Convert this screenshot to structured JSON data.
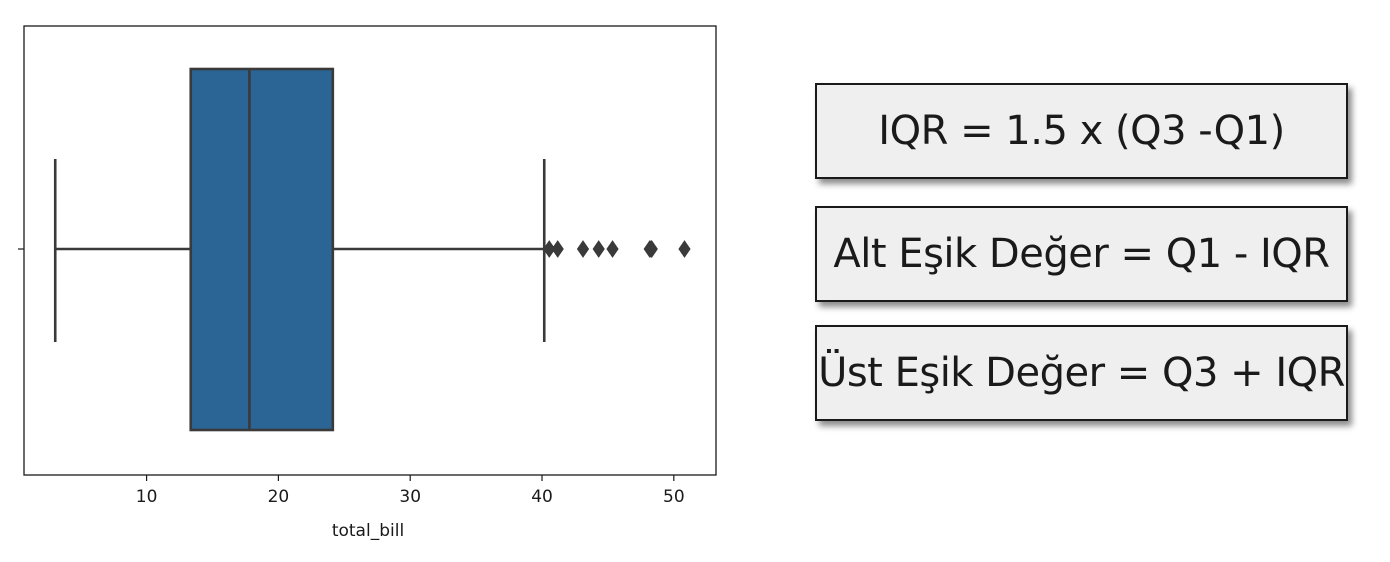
{
  "chart_data": {
    "type": "box",
    "xlabel": "total_bill",
    "xlim": [
      0.7,
      53.2
    ],
    "xticks": [
      10,
      20,
      30,
      40,
      50
    ],
    "box": {
      "whisker_low": 3.07,
      "q1": 13.35,
      "median": 17.8,
      "q3": 24.13,
      "whisker_high": 40.17
    },
    "outliers": [
      40.55,
      41.19,
      43.11,
      44.3,
      45.35,
      48.17,
      48.27,
      48.33,
      50.81
    ],
    "colors": {
      "box": "#2a6595",
      "lines": "#3a3a3a",
      "axes": "#1a1a1a"
    }
  },
  "formulas": [
    {
      "text": "IQR = 1.5 x (Q3 -Q1)"
    },
    {
      "text": "Alt Eşik Değer = Q1 - IQR"
    },
    {
      "text": "Üst Eşik Değer = Q3 + IQR"
    }
  ]
}
